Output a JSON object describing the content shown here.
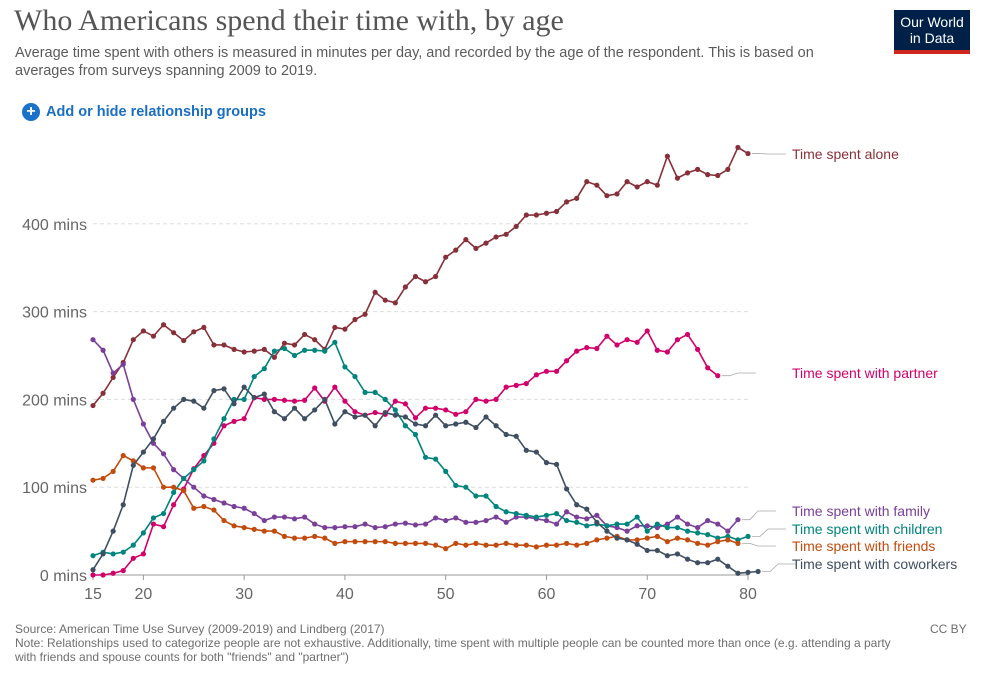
{
  "header": {
    "title": "Who Americans spend their time with, by age",
    "subtitle": "Average time spent with others is measured in minutes per day, and recorded by the age of the respondent. This is based on averages from surveys spanning 2009 to 2019.",
    "logo_line1": "Our World",
    "logo_line2": "in Data"
  },
  "controls": {
    "add_groups_label": "Add or hide relationship groups"
  },
  "footer": {
    "source": "Source: American Time Use Survey (2009-2019) and Lindberg (2017)",
    "note": "Note: Relationships used to categorize people are not exhaustive. Additionally, time spent with multiple people can be counted more than once (e.g. attending a party with friends and spouse counts for both \"friends\" and \"partner\")",
    "license": "CC BY"
  },
  "chart_data": {
    "type": "line",
    "xlabel": "",
    "ylabel": "",
    "xlim": [
      15,
      80
    ],
    "ylim": [
      0,
      500
    ],
    "xticks": [
      15,
      20,
      30,
      40,
      50,
      60,
      70,
      80
    ],
    "yticks": [
      {
        "value": 0,
        "label": "0 mins"
      },
      {
        "value": 100,
        "label": "100 mins"
      },
      {
        "value": 200,
        "label": "200 mins"
      },
      {
        "value": 300,
        "label": "300 mins"
      },
      {
        "value": 400,
        "label": "400 mins"
      }
    ],
    "grid": true,
    "legend": "right-end labels",
    "series": [
      {
        "name": "Time spent alone",
        "color": "#883039",
        "x_start": 15,
        "values": [
          193,
          207,
          225,
          242,
          268,
          278,
          272,
          285,
          276,
          267,
          277,
          282,
          262,
          262,
          257,
          254,
          255,
          257,
          248,
          264,
          262,
          274,
          268,
          257,
          282,
          280,
          291,
          297,
          322,
          313,
          310,
          328,
          340,
          334,
          340,
          362,
          370,
          382,
          372,
          378,
          385,
          388,
          397,
          410,
          410,
          412,
          414,
          425,
          429,
          448,
          444,
          432,
          434,
          448,
          442,
          448,
          444,
          477,
          452,
          458,
          462,
          456,
          455,
          462,
          487,
          480
        ]
      },
      {
        "name": "Time spent with partner",
        "color": "#d1006b",
        "x_start": 15,
        "values": [
          0,
          0,
          2,
          5,
          19,
          24,
          58,
          55,
          80,
          98,
          121,
          136,
          150,
          170,
          175,
          178,
          202,
          200,
          200,
          199,
          198,
          199,
          213,
          198,
          214,
          198,
          186,
          182,
          185,
          183,
          198,
          195,
          179,
          190,
          190,
          188,
          183,
          186,
          200,
          198,
          200,
          214,
          216,
          218,
          228,
          232,
          232,
          244,
          255,
          259,
          258,
          272,
          262,
          268,
          265,
          278,
          256,
          254,
          268,
          274,
          257,
          236,
          227
        ]
      },
      {
        "name": "Time spent with family",
        "color": "#7a3f98",
        "x_start": 15,
        "values": [
          268,
          256,
          230,
          240,
          200,
          172,
          150,
          138,
          120,
          110,
          100,
          90,
          86,
          82,
          78,
          76,
          70,
          62,
          66,
          66,
          64,
          66,
          58,
          54,
          54,
          55,
          55,
          58,
          54,
          55,
          58,
          59,
          57,
          58,
          65,
          62,
          65,
          60,
          60,
          62,
          66,
          60,
          66,
          66,
          64,
          62,
          58,
          72,
          66,
          64,
          68,
          56,
          54,
          50,
          56,
          56,
          54,
          58,
          66,
          58,
          54,
          62,
          58,
          50,
          63
        ]
      },
      {
        "name": "Time spent with children",
        "color": "#00847e",
        "x_start": 15,
        "values": [
          22,
          26,
          24,
          26,
          34,
          48,
          65,
          70,
          94,
          110,
          120,
          130,
          155,
          178,
          200,
          200,
          226,
          235,
          255,
          258,
          250,
          256,
          256,
          255,
          265,
          237,
          226,
          208,
          208,
          200,
          188,
          170,
          160,
          134,
          132,
          118,
          102,
          100,
          90,
          90,
          78,
          72,
          70,
          68,
          66,
          68,
          70,
          62,
          60,
          56,
          58,
          56,
          58,
          58,
          66,
          50,
          58,
          54,
          54,
          50,
          48,
          46,
          42,
          44,
          40,
          44
        ]
      },
      {
        "name": "Time spent with friends",
        "color": "#c24b0e",
        "x_start": 15,
        "values": [
          108,
          110,
          118,
          136,
          130,
          122,
          122,
          100,
          100,
          96,
          76,
          78,
          74,
          62,
          56,
          54,
          52,
          50,
          50,
          44,
          42,
          42,
          44,
          42,
          36,
          38,
          38,
          38,
          38,
          38,
          36,
          36,
          36,
          36,
          34,
          30,
          36,
          34,
          36,
          34,
          34,
          36,
          34,
          34,
          32,
          34,
          34,
          36,
          34,
          36,
          40,
          42,
          44,
          40,
          40,
          42,
          44,
          38,
          42,
          40,
          36,
          34,
          38,
          40,
          36
        ]
      },
      {
        "name": "Time spent with coworkers",
        "color": "#3f4e60",
        "x_start": 15,
        "values": [
          6,
          24,
          50,
          80,
          125,
          140,
          155,
          175,
          190,
          200,
          198,
          190,
          210,
          212,
          195,
          214,
          202,
          206,
          186,
          178,
          190,
          178,
          188,
          200,
          172,
          186,
          180,
          182,
          170,
          185,
          182,
          180,
          172,
          170,
          182,
          170,
          172,
          174,
          168,
          180,
          170,
          160,
          158,
          142,
          140,
          128,
          126,
          98,
          80,
          75,
          60,
          50,
          42,
          40,
          35,
          28,
          28,
          22,
          24,
          18,
          14,
          14,
          18,
          10,
          2,
          3,
          4
        ]
      }
    ]
  }
}
